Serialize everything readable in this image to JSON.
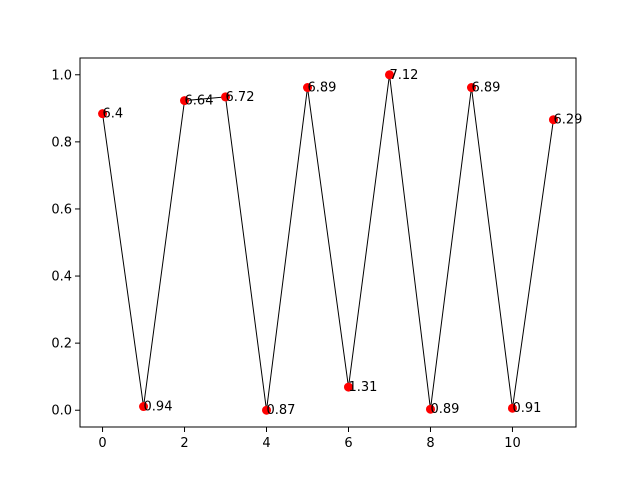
{
  "chart_data": {
    "type": "line",
    "title": "",
    "xlabel": "",
    "ylabel": "",
    "x": [
      0,
      1,
      2,
      3,
      4,
      5,
      6,
      7,
      8,
      9,
      10,
      11
    ],
    "y": [
      0.884,
      0.011,
      0.923,
      0.934,
      0.0,
      0.962,
      0.069,
      1.0,
      0.003,
      0.962,
      0.006,
      0.866
    ],
    "point_labels": [
      "6.4",
      "0.94",
      "6.64",
      "6.72",
      "0.87",
      "6.89",
      "1.31",
      "7.12",
      "0.89",
      "6.89",
      "0.91",
      "6.29"
    ],
    "xlim": [
      -0.55,
      11.55
    ],
    "ylim": [
      -0.05,
      1.05
    ],
    "xticks": [
      0,
      2,
      4,
      6,
      8,
      10
    ],
    "xtick_labels": [
      "0",
      "2",
      "4",
      "6",
      "8",
      "10"
    ],
    "yticks": [
      0.0,
      0.2,
      0.4,
      0.6,
      0.8,
      1.0
    ],
    "ytick_labels": [
      "0.0",
      "0.2",
      "0.4",
      "0.6",
      "0.8",
      "1.0"
    ],
    "grid": false,
    "line_color": "#000000",
    "marker_color": "#ff0000"
  }
}
